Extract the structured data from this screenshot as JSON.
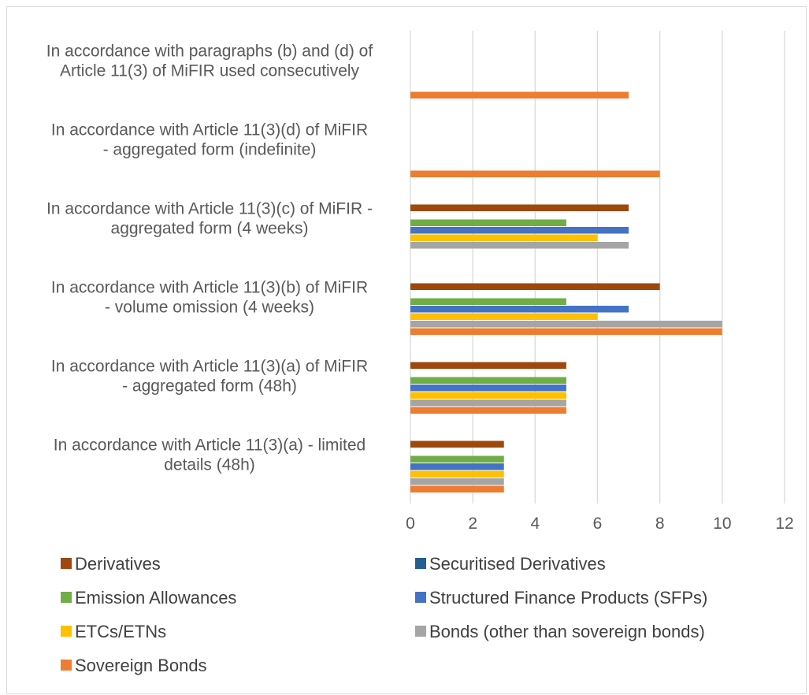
{
  "chart_data": {
    "type": "bar",
    "orientation": "horizontal",
    "categories": [
      "In accordance with paragraphs (b) and (d) of Article 11(3) of MiFIR used consecutively",
      "In accordance with Article 11(3)(d) of MiFIR - aggregated form (indefinite)",
      "In accordance with Article 11(3)(c) of MiFIR - aggregated form (4 weeks)",
      "In accordance with Article 11(3)(b) of MiFIR - volume omission (4 weeks)",
      "In accordance with Article 11(3)(a) of MiFIR - aggregated form (48h)",
      "In accordance with Article 11(3)(a) - limited details (48h)"
    ],
    "category_lines": [
      [
        "In accordance with paragraphs (b) and (d) of",
        "Article 11(3) of MiFIR used consecutively"
      ],
      [
        "In accordance with Article 11(3)(d) of MiFIR",
        "- aggregated form (indefinite)"
      ],
      [
        "In accordance with Article 11(3)(c) of MiFIR -",
        "aggregated form (4 weeks)"
      ],
      [
        "In accordance with Article 11(3)(b) of MiFIR",
        "- volume omission (4 weeks)"
      ],
      [
        "In accordance with Article 11(3)(a) of MiFIR",
        "-  aggregated form (48h)"
      ],
      [
        "In accordance with Article 11(3)(a) - limited",
        "details (48h)"
      ]
    ],
    "series": [
      {
        "name": "Derivatives",
        "color": "#9e480e",
        "values": [
          0,
          0,
          7,
          8,
          5,
          3
        ]
      },
      {
        "name": "Securitised Derivatives",
        "color": "#255e91",
        "values": [
          0,
          0,
          0,
          0,
          0,
          0
        ]
      },
      {
        "name": "Emission Allowances",
        "color": "#70ad47",
        "values": [
          0,
          0,
          5,
          5,
          5,
          3
        ]
      },
      {
        "name": "Structured Finance Products (SFPs)",
        "color": "#4472c4",
        "values": [
          0,
          0,
          7,
          7,
          5,
          3
        ]
      },
      {
        "name": "ETCs/ETNs",
        "color": "#ffc000",
        "values": [
          0,
          0,
          6,
          6,
          5,
          3
        ]
      },
      {
        "name": "Bonds (other than sovereign bonds)",
        "color": "#a5a5a5",
        "values": [
          0,
          0,
          7,
          10,
          5,
          3
        ]
      },
      {
        "name": "Sovereign Bonds",
        "color": "#ed7d31",
        "values": [
          7,
          8,
          0,
          10,
          5,
          3
        ]
      }
    ],
    "xlim": [
      0,
      12
    ],
    "xticks": [
      0,
      2,
      4,
      6,
      8,
      10,
      12
    ],
    "grid": "vertical",
    "legend": "bottom",
    "gridline_color": "#d9d9d9"
  }
}
